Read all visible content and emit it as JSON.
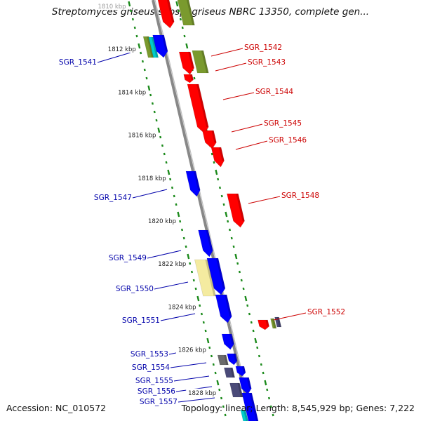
{
  "title": "Streptomyces griseus subsp. griseus NBRC 13350, complete gen...",
  "footer": {
    "accession": "Accession: NC_010572",
    "summary": "Topology: linear; Length: 8,545,929 bp; Genes: 7,222"
  },
  "colors": {
    "forward": "#ff0000",
    "reverse": "#0000ff",
    "olive": "#7a9a2e",
    "cyan": "#00cccc",
    "pale": "#f4eba0",
    "slate": "#4a4a78",
    "dim": "#6b6b6b",
    "ticks": "#1b8a1b",
    "backbone": "#888888",
    "label_red": "#cc0000",
    "label_blue": "#0000aa"
  },
  "ruler": [
    {
      "label": "1810 kbp",
      "faded": true
    },
    {
      "label": "1812 kbp"
    },
    {
      "label": "1814 kbp"
    },
    {
      "label": "1816 kbp"
    },
    {
      "label": "1818 kbp"
    },
    {
      "label": "1820 kbp"
    },
    {
      "label": "1822 kbp"
    },
    {
      "label": "1824 kbp"
    },
    {
      "label": "1826 kbp"
    },
    {
      "label": "1828 kbp"
    }
  ],
  "genes_right": [
    {
      "label": "SGR_1542"
    },
    {
      "label": "SGR_1543"
    },
    {
      "label": "SGR_1544"
    },
    {
      "label": "SGR_1545"
    },
    {
      "label": "SGR_1546"
    },
    {
      "label": "SGR_1548"
    },
    {
      "label": "SGR_1552"
    }
  ],
  "genes_left": [
    {
      "label": "SGR_1541"
    },
    {
      "label": "SGR_1547"
    },
    {
      "label": "SGR_1549"
    },
    {
      "label": "SGR_1550"
    },
    {
      "label": "SGR_1551"
    },
    {
      "label": "SGR_1553"
    },
    {
      "label": "SGR_1554"
    },
    {
      "label": "SGR_1555"
    },
    {
      "label": "SGR_1556"
    },
    {
      "label": "SGR_1557"
    }
  ]
}
